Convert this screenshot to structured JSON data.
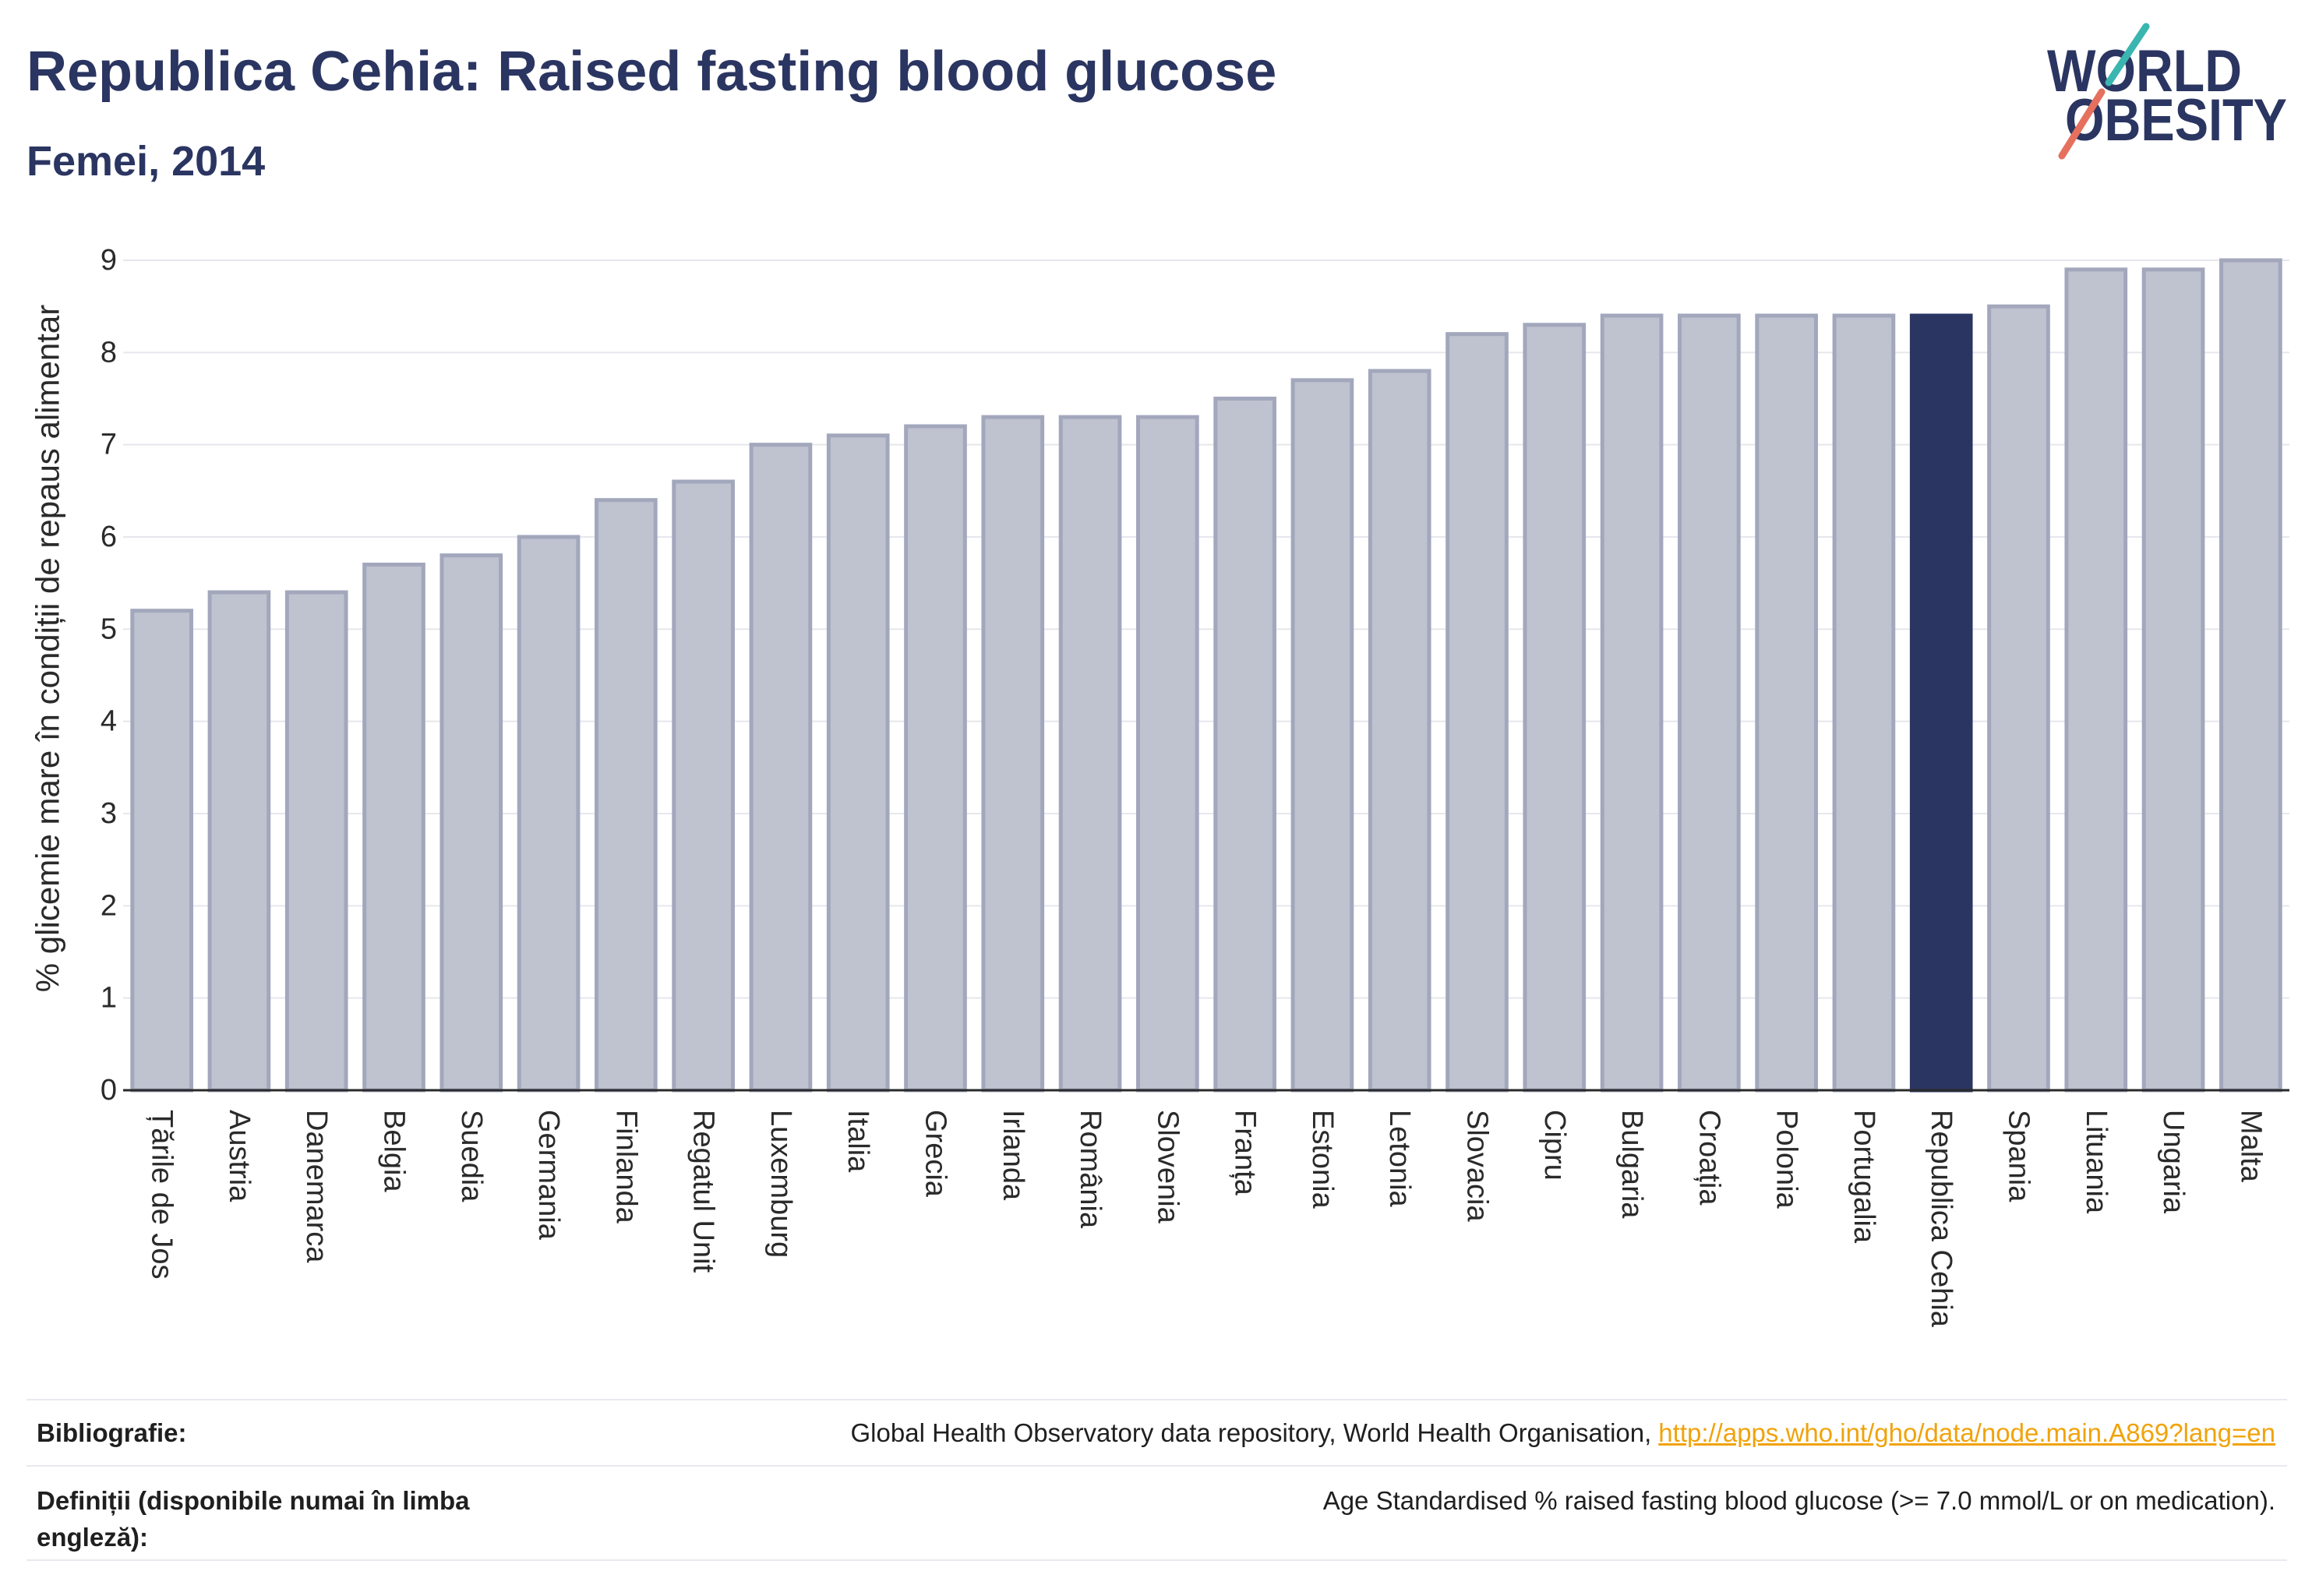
{
  "chart_data": {
    "type": "bar",
    "title": "Republica Cehia: Raised fasting blood glucose",
    "subtitle": "Femei, 2014",
    "xlabel": "",
    "ylabel": "% glicemie mare în condiții de repaus alimentar",
    "categories": [
      "Țările de Jos",
      "Austria",
      "Danemarca",
      "Belgia",
      "Suedia",
      "Germania",
      "Finlanda",
      "Regatul Unit",
      "Luxemburg",
      "Italia",
      "Grecia",
      "Irlanda",
      "România",
      "Slovenia",
      "Franța",
      "Estonia",
      "Letonia",
      "Slovacia",
      "Cipru",
      "Bulgaria",
      "Croația",
      "Polonia",
      "Portugalia",
      "Republica Cehia",
      "Spania",
      "Lituania",
      "Ungaria",
      "Malta"
    ],
    "values": [
      5.2,
      5.4,
      5.4,
      5.7,
      5.8,
      6.0,
      6.4,
      6.6,
      7.0,
      7.1,
      7.2,
      7.3,
      7.3,
      7.3,
      7.5,
      7.7,
      7.8,
      8.2,
      8.3,
      8.4,
      8.4,
      8.4,
      8.4,
      8.4,
      8.5,
      8.9,
      8.9,
      9.0
    ],
    "highlight_category": "Republica Cehia",
    "ylim": [
      0,
      9
    ],
    "yticks": [
      0,
      1,
      2,
      3,
      4,
      5,
      6,
      7,
      8,
      9
    ],
    "grid": true
  },
  "logo": {
    "line1": "WORLD",
    "line2": "OBESITY"
  },
  "footer": {
    "bibliography_label": "Bibliografie:",
    "bibliography_source": "Global Health Observatory data repository, World Health Organisation,",
    "bibliography_link": "http://apps.who.int/gho/data/node.main.A869?lang=en",
    "definitions_label": "Definiții (disponibile numai în limba engleză):",
    "definitions_text": "Age Standardised % raised fasting blood glucose (>= 7.0 mmol/L or on medication)."
  },
  "colors": {
    "title": "#2b3561",
    "bar": "#bfc2cf",
    "bar_outline": "#a2a7bc",
    "highlight": "#2b3561",
    "gridline": "#e6e7ee",
    "axis": "#2a2a2a",
    "link": "#f0a30a",
    "logo_text": "#2b3561",
    "logo_teal": "#3ab5b0",
    "logo_coral": "#e5705e"
  }
}
